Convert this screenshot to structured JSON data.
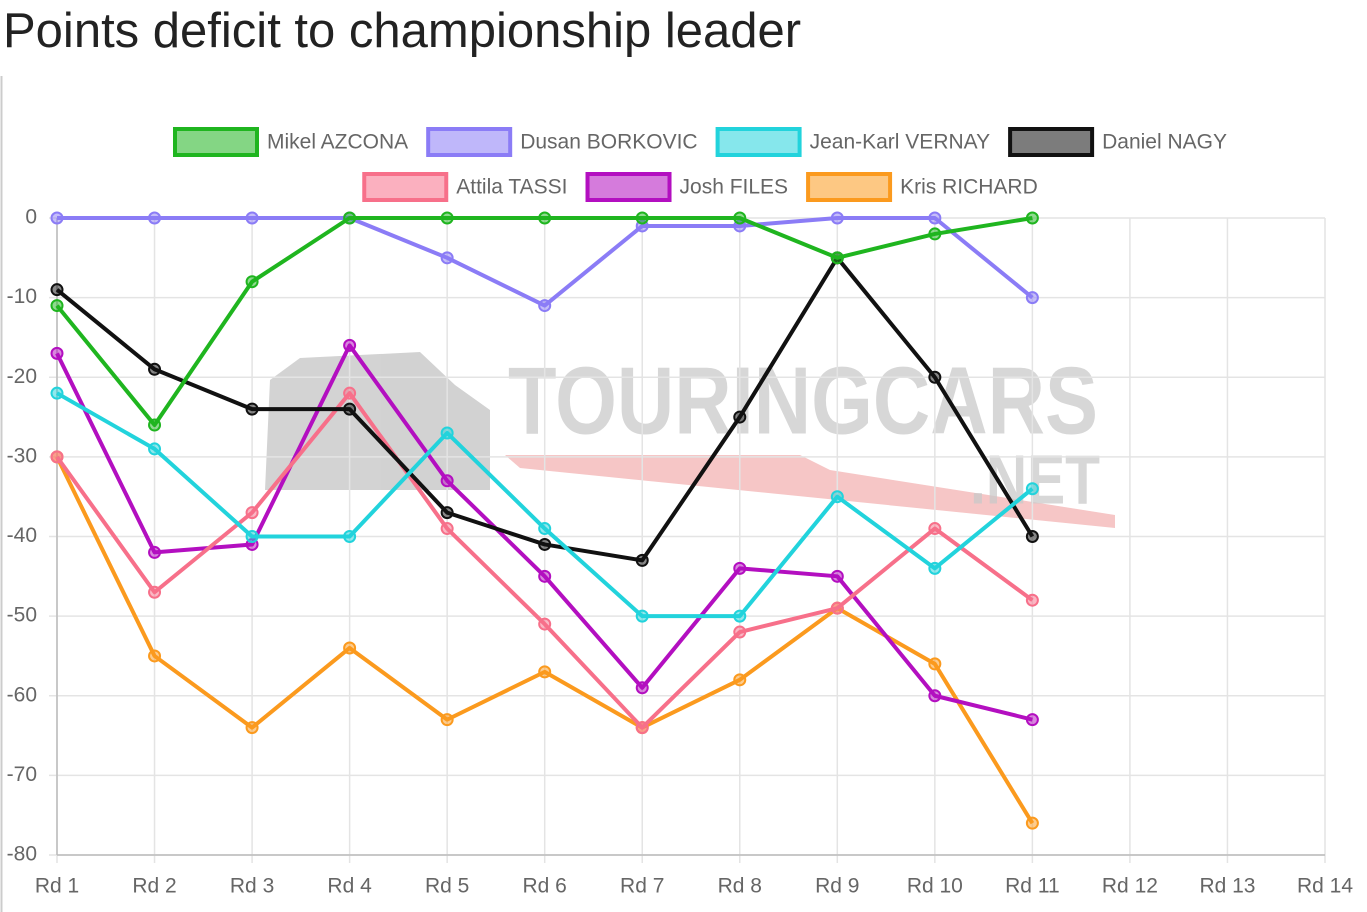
{
  "chart_data": {
    "type": "line",
    "title": "Points deficit to championship leader",
    "watermark": [
      "TOURINGCARS",
      ".NET"
    ],
    "categories": [
      "Rd 1",
      "Rd 2",
      "Rd 3",
      "Rd 4",
      "Rd 5",
      "Rd 6",
      "Rd 7",
      "Rd 8",
      "Rd 9",
      "Rd 10",
      "Rd 11",
      "Rd 12",
      "Rd 13",
      "Rd 14"
    ],
    "series": [
      {
        "name": "Mikel AZCONA",
        "color": "#1fb51f",
        "values": [
          -11,
          -26,
          -8,
          0,
          0,
          0,
          0,
          0,
          -5,
          -2,
          0,
          null,
          null,
          null
        ]
      },
      {
        "name": "Dusan BORKOVIC",
        "color": "#8b7cf6",
        "values": [
          0,
          0,
          0,
          0,
          -5,
          -11,
          -1,
          -1,
          0,
          0,
          -10,
          null,
          null,
          null
        ]
      },
      {
        "name": "Jean-Karl VERNAY",
        "color": "#22d3dc",
        "values": [
          -22,
          -29,
          -40,
          -40,
          -27,
          -39,
          -50,
          -50,
          -35,
          -44,
          -34,
          null,
          null,
          null
        ]
      },
      {
        "name": "Daniel NAGY",
        "color": "#111111",
        "values": [
          -9,
          -19,
          -24,
          -24,
          -37,
          -41,
          -43,
          -25,
          -5,
          -20,
          -40,
          null,
          null,
          null
        ]
      },
      {
        "name": "Attila TASSI",
        "color": "#f7708a",
        "values": [
          -30,
          -47,
          -37,
          -22,
          -39,
          -51,
          -64,
          -52,
          -49,
          -39,
          -48,
          null,
          null,
          null
        ]
      },
      {
        "name": "Josh FILES",
        "color": "#b30fc0",
        "values": [
          -17,
          -42,
          -41,
          -16,
          -33,
          -45,
          -59,
          -44,
          -45,
          -60,
          -63,
          null,
          null,
          null
        ]
      },
      {
        "name": "Kris RICHARD",
        "color": "#fb9a1e",
        "values": [
          -30,
          -55,
          -64,
          -54,
          -63,
          -57,
          -64,
          -58,
          -49,
          -56,
          -76,
          null,
          null,
          null
        ]
      }
    ],
    "ylim": [
      -80,
      0
    ],
    "yticks": [
      0,
      -10,
      -20,
      -30,
      -40,
      -50,
      -60,
      -70,
      -80
    ],
    "grid": true,
    "legend": "top"
  }
}
